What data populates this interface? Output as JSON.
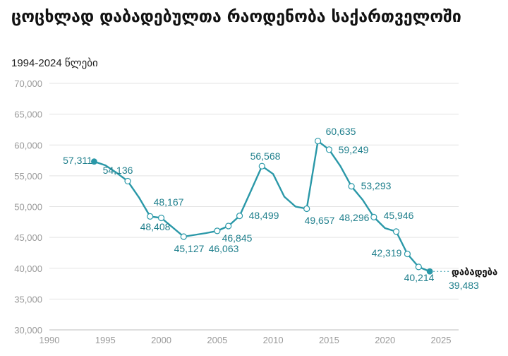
{
  "chart_data": {
    "type": "line",
    "title": "ცოცხლად დაბადებულთა რაოდენობა საქართველოში",
    "subtitle": "1994-2024 წლები",
    "series_label": "დაბადება",
    "color": "#2a98a8",
    "ylim": [
      30000,
      70000
    ],
    "xlim": [
      1990,
      2025
    ],
    "yticks": [
      30000,
      35000,
      40000,
      45000,
      50000,
      55000,
      60000,
      65000,
      70000
    ],
    "ytick_labels": [
      "30,000",
      "35,000",
      "40,000",
      "45,000",
      "50,000",
      "55,000",
      "60,000",
      "65,000",
      "70,000"
    ],
    "xticks": [
      1990,
      1995,
      2000,
      2005,
      2010,
      2015,
      2020,
      2025
    ],
    "xtick_labels": [
      "1990",
      "1995",
      "2000",
      "2005",
      "2010",
      "2015",
      "2020",
      "2025"
    ],
    "grid": true,
    "series": [
      {
        "name": "დაბადება",
        "points": [
          {
            "x": 1994,
            "y": 57311
          },
          {
            "x": 1995,
            "y": 56700
          },
          {
            "x": 1996,
            "y": 55500
          },
          {
            "x": 1997,
            "y": 54136
          },
          {
            "x": 1998,
            "y": 51500
          },
          {
            "x": 1999,
            "y": 48408
          },
          {
            "x": 2000,
            "y": 48167
          },
          {
            "x": 2002,
            "y": 45127
          },
          {
            "x": 2004,
            "y": 45700
          },
          {
            "x": 2005,
            "y": 46063
          },
          {
            "x": 2006,
            "y": 46845
          },
          {
            "x": 2007,
            "y": 48499
          },
          {
            "x": 2008,
            "y": 52500
          },
          {
            "x": 2009,
            "y": 56568
          },
          {
            "x": 2010,
            "y": 55300
          },
          {
            "x": 2011,
            "y": 51600
          },
          {
            "x": 2012,
            "y": 50000
          },
          {
            "x": 2013,
            "y": 49657
          },
          {
            "x": 2014,
            "y": 60635
          },
          {
            "x": 2015,
            "y": 59249
          },
          {
            "x": 2016,
            "y": 56600
          },
          {
            "x": 2017,
            "y": 53293
          },
          {
            "x": 2018,
            "y": 51100
          },
          {
            "x": 2019,
            "y": 48296
          },
          {
            "x": 2020,
            "y": 46500
          },
          {
            "x": 2021,
            "y": 45946
          },
          {
            "x": 2022,
            "y": 42319
          },
          {
            "x": 2023,
            "y": 40214
          },
          {
            "x": 2024,
            "y": 39483
          }
        ]
      }
    ],
    "data_labels": [
      {
        "x": 1994,
        "y": 57311,
        "text": "57,311"
      },
      {
        "x": 1997,
        "y": 54136,
        "text": "54,136"
      },
      {
        "x": 2000,
        "y": 48167,
        "text": "48,167"
      },
      {
        "x": 1999,
        "y": 48408,
        "text": "48,408"
      },
      {
        "x": 2002,
        "y": 45127,
        "text": "45,127"
      },
      {
        "x": 2006,
        "y": 46845,
        "text": "46,845"
      },
      {
        "x": 2005,
        "y": 46063,
        "text": "46,063"
      },
      {
        "x": 2007,
        "y": 48499,
        "text": "48,499"
      },
      {
        "x": 2009,
        "y": 56568,
        "text": "56,568"
      },
      {
        "x": 2013,
        "y": 49657,
        "text": "49,657"
      },
      {
        "x": 2014,
        "y": 60635,
        "text": "60,635"
      },
      {
        "x": 2015,
        "y": 59249,
        "text": "59,249"
      },
      {
        "x": 2017,
        "y": 53293,
        "text": "53,293"
      },
      {
        "x": 2019,
        "y": 48296,
        "text": "48,296"
      },
      {
        "x": 2021,
        "y": 45946,
        "text": "45,946"
      },
      {
        "x": 2022,
        "y": 42319,
        "text": "42,319"
      },
      {
        "x": 2023,
        "y": 40214,
        "text": "40,214"
      },
      {
        "x": 2024,
        "y": 39483,
        "text": "39,483"
      }
    ]
  }
}
